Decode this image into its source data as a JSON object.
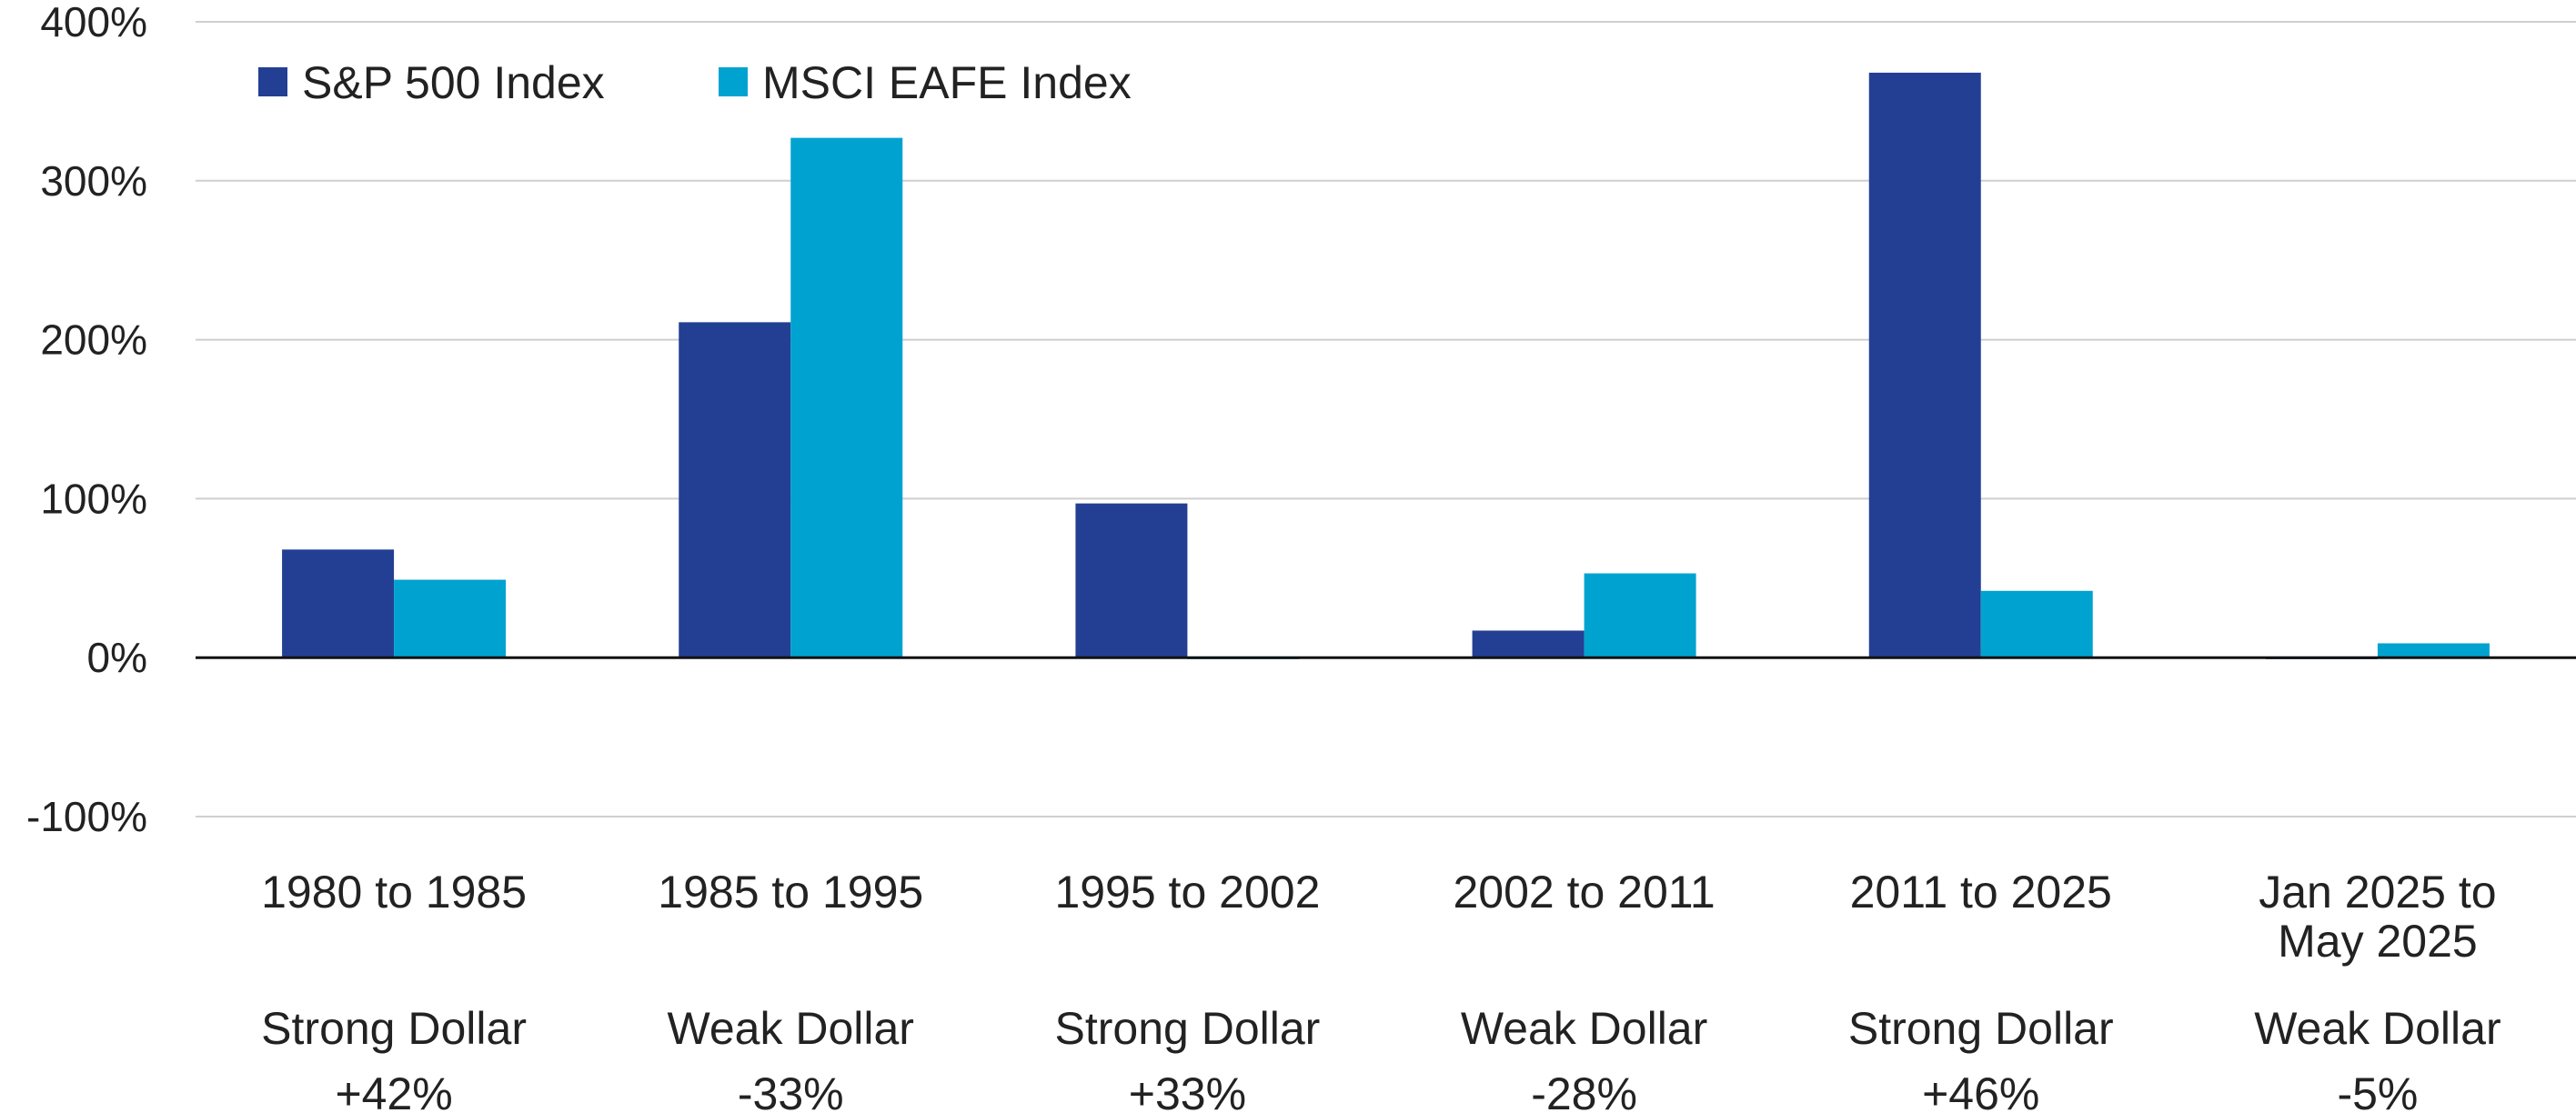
{
  "chart_data": {
    "type": "bar",
    "title": "",
    "xlabel": "",
    "ylabel": "",
    "ylim": [
      -100,
      400
    ],
    "yticks": [
      400,
      300,
      200,
      100,
      0,
      -100
    ],
    "ytick_labels": [
      "400%",
      "300%",
      "200%",
      "100%",
      "0%",
      "-100%"
    ],
    "grid": true,
    "legend_position": "top-left",
    "categories": [
      [
        "1980 to 1985",
        "",
        "Strong Dollar",
        "+42%"
      ],
      [
        "1985 to 1995",
        "",
        "Weak Dollar",
        "-33%"
      ],
      [
        "1995 to 2002",
        "",
        "Strong Dollar",
        "+33%"
      ],
      [
        "2002 to 2011",
        "",
        "Weak Dollar",
        "-28%"
      ],
      [
        "2011 to 2025",
        "",
        "Strong Dollar",
        "+46%"
      ],
      [
        "Jan 2025 to",
        "May 2025",
        "Weak Dollar",
        "-5%"
      ]
    ],
    "series": [
      {
        "name": "S&P 500 Index",
        "color": "#233F94",
        "values": [
          68,
          211,
          97,
          17,
          368,
          -1
        ]
      },
      {
        "name": "MSCI EAFE Index",
        "color": "#00A3D0",
        "values": [
          49,
          327,
          -1,
          53,
          42,
          9
        ]
      }
    ]
  }
}
